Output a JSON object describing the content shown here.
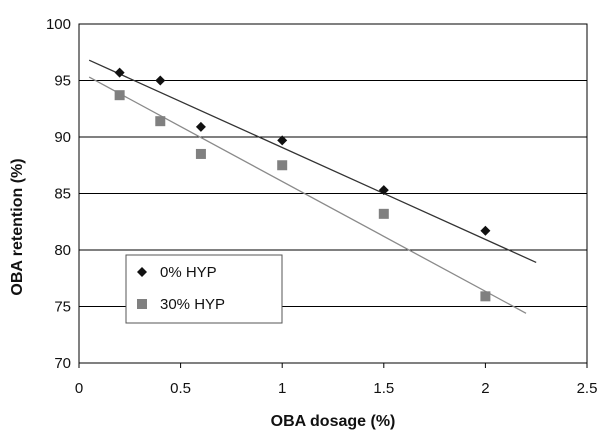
{
  "chart_data": {
    "type": "scatter",
    "xlabel": "OBA dosage (%)",
    "ylabel": "OBA retention (%)",
    "xlim": [
      0,
      2.5
    ],
    "ylim": [
      70,
      100
    ],
    "x_ticks": [
      0,
      0.5,
      1,
      1.5,
      2,
      2.5
    ],
    "x_tick_labels": [
      "0",
      "0.5",
      "1",
      "1.5",
      "2",
      "2.5"
    ],
    "y_ticks": [
      70,
      75,
      80,
      85,
      90,
      95,
      100
    ],
    "y_tick_labels": [
      "70",
      "75",
      "80",
      "85",
      "90",
      "95",
      "100"
    ],
    "grid": "horizontal",
    "legend_position": "bottom-left",
    "series": [
      {
        "name": "0% HYP",
        "marker": "diamond",
        "color": "#111111",
        "x": [
          0.2,
          0.4,
          0.6,
          1.0,
          1.5,
          2.0
        ],
        "y": [
          95.7,
          95.0,
          90.9,
          89.7,
          85.3,
          81.7
        ],
        "trendline": {
          "x": [
            0.05,
            2.25
          ],
          "y": [
            96.8,
            78.9
          ],
          "color": "#333333"
        }
      },
      {
        "name": "30% HYP",
        "marker": "square",
        "color": "#808080",
        "x": [
          0.2,
          0.4,
          0.6,
          1.0,
          1.5,
          2.0
        ],
        "y": [
          93.7,
          91.4,
          88.5,
          87.5,
          83.2,
          75.9
        ],
        "trendline": {
          "x": [
            0.05,
            2.2
          ],
          "y": [
            95.3,
            74.4
          ],
          "color": "#8a8a8a"
        }
      }
    ]
  }
}
